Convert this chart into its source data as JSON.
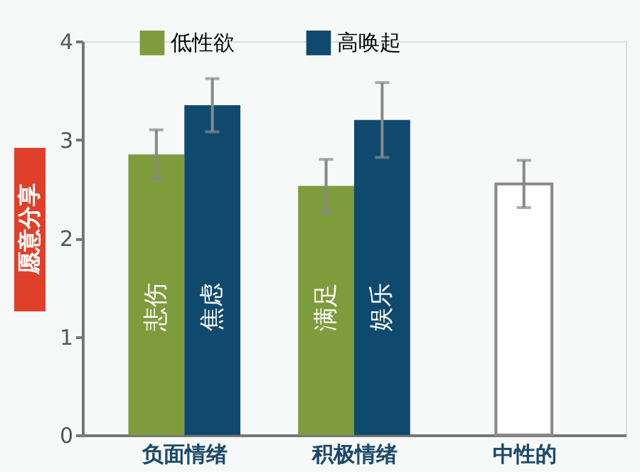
{
  "chart_data": {
    "type": "bar",
    "ylabel": "愿意分享",
    "categories": [
      "负面情绪",
      "积极情绪",
      "中性的"
    ],
    "series": [
      {
        "name": "低性欲",
        "color": "#7f9c3c",
        "values": [
          2.85,
          2.53,
          null
        ],
        "errors": [
          0.25,
          0.27,
          null
        ]
      },
      {
        "name": "高唤起",
        "color": "#0f4a6e",
        "values": [
          3.35,
          3.2,
          null
        ],
        "errors": [
          0.27,
          0.38,
          null
        ]
      },
      {
        "color": "#ffffff",
        "values": [
          null,
          null,
          2.55
        ],
        "errors": [
          null,
          null,
          0.24
        ]
      }
    ],
    "annotations": [
      {
        "text": "悲伤",
        "x": "负面情绪",
        "y": 1.3
      },
      {
        "text": "焦虑",
        "x": "负面情绪",
        "y": 1.3
      },
      {
        "text": "满足",
        "x": "积极情绪",
        "y": 1.3
      },
      {
        "text": "娱乐",
        "x": "积极情绪",
        "y": 1.3
      }
    ],
    "ylim": [
      0,
      4
    ],
    "yticks": [
      0,
      1,
      2,
      3,
      4
    ],
    "grid": false,
    "legend": "top"
  }
}
